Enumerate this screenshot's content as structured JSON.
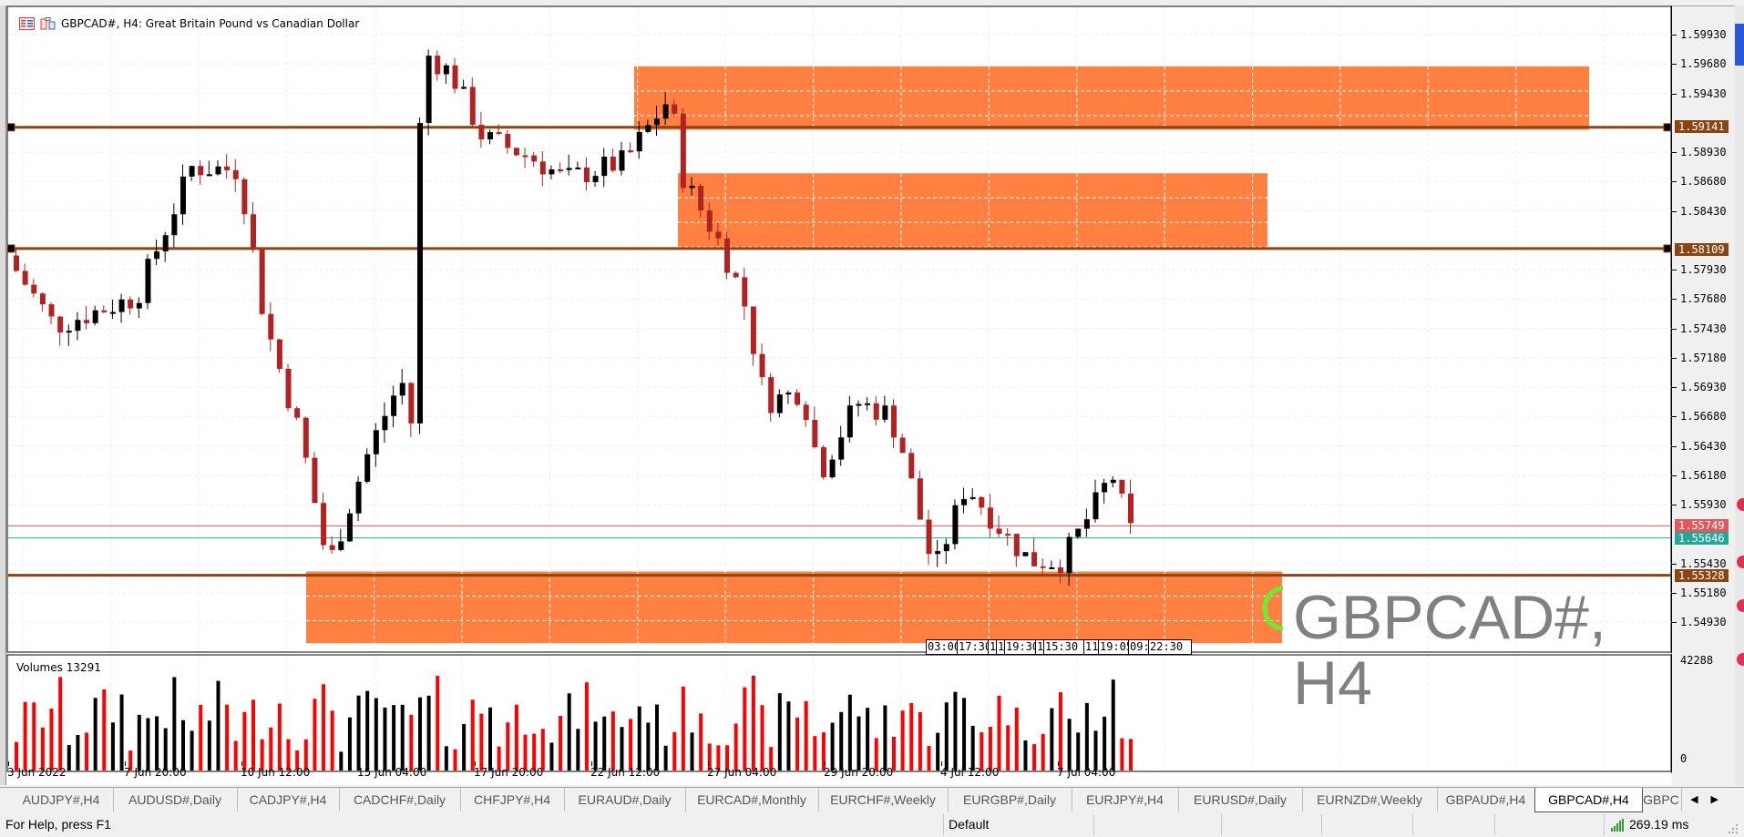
{
  "window": {
    "symbol": "GBPCAD#",
    "timeframe": "H4",
    "title": "GBPCAD#, H4:  Great Britain Pound vs Canadian Dollar",
    "watermark": "GBPCAD#, H4"
  },
  "price_axis": {
    "ticks": [
      "1.59930",
      "1.59680",
      "1.59430",
      "1.58930",
      "1.58680",
      "1.58430",
      "1.57930",
      "1.57680",
      "1.57430",
      "1.57180",
      "1.56930",
      "1.56680",
      "1.56430",
      "1.56180",
      "1.55930",
      "1.55430",
      "1.55180",
      "1.54930"
    ],
    "tags": {
      "level_high": {
        "value": "1.59141",
        "color": "#8b4513"
      },
      "level_mid": {
        "value": "1.58109",
        "color": "#8b4513"
      },
      "ask": {
        "value": "1.55749",
        "color": "#e05a5a"
      },
      "bid": {
        "value": "1.55646",
        "color": "#26a69a"
      },
      "level_low": {
        "value": "1.55328",
        "color": "#8b4513"
      }
    }
  },
  "volume_pane": {
    "label": "Volumes 13291",
    "max_label": "42288",
    "min_label": "0"
  },
  "time_axis": {
    "labels": [
      "3 Jun 2022",
      "7 Jun 20:00",
      "10 Jun 12:00",
      "15 Jun 04:00",
      "17 Jun 20:00",
      "22 Jun 12:00",
      "27 Jun 04:00",
      "29 Jun 20:00",
      "4 Jul 12:00",
      "7 Jul 04:00"
    ]
  },
  "time_boxes": [
    "03:00",
    "17:30",
    "1",
    "1",
    "19:30",
    "1",
    "15:30",
    "11",
    "19:05",
    "09:0",
    "22:30"
  ],
  "tabs": [
    {
      "label": "AUDJPY#,H4",
      "active": false
    },
    {
      "label": "AUDUSD#,Daily",
      "active": false
    },
    {
      "label": "CADJPY#,H4",
      "active": false
    },
    {
      "label": "CADCHF#,Daily",
      "active": false
    },
    {
      "label": "CHFJPY#,H4",
      "active": false
    },
    {
      "label": "EURAUD#,Daily",
      "active": false
    },
    {
      "label": "EURCAD#,Monthly",
      "active": false
    },
    {
      "label": "EURCHF#,Weekly",
      "active": false
    },
    {
      "label": "EURGBP#,Daily",
      "active": false
    },
    {
      "label": "EURJPY#,H4",
      "active": false
    },
    {
      "label": "EURUSD#,Daily",
      "active": false
    },
    {
      "label": "EURNZD#,Weekly",
      "active": false
    },
    {
      "label": "GBPAUD#,H4",
      "active": false
    },
    {
      "label": "GBPCAD#,H4",
      "active": true
    },
    {
      "label": "GBPC",
      "active": false
    }
  ],
  "status_bar": {
    "help": "For Help, press F1",
    "profile": "Default",
    "ping": "269.19 ms"
  },
  "colors": {
    "bull": "#000000",
    "bear": "#b22222",
    "zone": "#ff8040",
    "level": "#8b4513",
    "vol_up": "#000000",
    "vol_down": "#ff0000"
  },
  "chart_data": {
    "type": "candlestick",
    "title": "GBPCAD#, H4",
    "ylim": [
      1.5475,
      1.6015
    ],
    "horizontal_levels": [
      1.59141,
      1.58109,
      1.55328
    ],
    "bid": 1.55646,
    "ask": 1.55749,
    "zones": [
      {
        "from_index": 59,
        "to_index": 148,
        "top": 1.5965,
        "bottom": 1.5914
      },
      {
        "from_index": 63,
        "to_index": 117,
        "top": 1.5875,
        "bottom": 1.5811
      },
      {
        "from_index": 28,
        "to_index": 119,
        "top": 1.5535,
        "bottom": 1.5475
      }
    ],
    "ohlc": [
      [
        1.5805,
        1.5811,
        1.5795,
        1.5803
      ],
      [
        1.5803,
        1.5807,
        1.578,
        1.5785
      ],
      [
        1.5785,
        1.5795,
        1.576,
        1.5765
      ],
      [
        1.5765,
        1.5775,
        1.574,
        1.5745
      ],
      [
        1.5745,
        1.5757,
        1.5722,
        1.5729
      ],
      [
        1.5729,
        1.574,
        1.5722,
        1.5735
      ],
      [
        1.5735,
        1.577,
        1.573,
        1.5768
      ],
      [
        1.5768,
        1.5785,
        1.575,
        1.5752
      ],
      [
        1.5752,
        1.577,
        1.5735,
        1.5761
      ],
      [
        1.5761,
        1.577,
        1.5745,
        1.5755
      ],
      [
        1.5745,
        1.5762,
        1.5732,
        1.576
      ],
      [
        1.5762,
        1.5765,
        1.5738,
        1.5746
      ],
      [
        1.5746,
        1.5774,
        1.5722,
        1.5748
      ],
      [
        1.5748,
        1.5795,
        1.5733,
        1.5775
      ],
      [
        1.5775,
        1.5785,
        1.575,
        1.5753
      ],
      [
        1.5753,
        1.577,
        1.574,
        1.5748
      ],
      [
        1.5748,
        1.5763,
        1.5742,
        1.575
      ],
      [
        1.5752,
        1.576,
        1.5718,
        1.5722
      ],
      [
        1.5724,
        1.5742,
        1.571,
        1.5726
      ],
      [
        1.5726,
        1.575,
        1.5715,
        1.5732
      ],
      [
        1.5732,
        1.576,
        1.5728,
        1.5745
      ],
      [
        1.5745,
        1.5752,
        1.572,
        1.5732
      ],
      [
        1.5732,
        1.5745,
        1.572,
        1.5738
      ],
      [
        1.5738,
        1.576,
        1.5726,
        1.5768
      ],
      [
        1.5768,
        1.583,
        1.5755,
        1.5835
      ],
      [
        1.5835,
        1.5882,
        1.583,
        1.5855
      ],
      [
        1.5855,
        1.5875,
        1.5852,
        1.5877
      ],
      [
        1.5877,
        1.5879,
        1.586,
        1.586
      ],
      [
        1.587,
        1.5882,
        1.584,
        1.588
      ],
      [
        1.588,
        1.5885,
        1.583,
        1.5812
      ],
      [
        1.5812,
        1.58,
        1.5745,
        1.5752
      ],
      [
        1.5752,
        1.577,
        1.574,
        1.577
      ],
      [
        1.577,
        1.5775,
        1.5742,
        1.5751
      ],
      [
        1.5751,
        1.578,
        1.5745,
        1.578
      ],
      [
        1.578,
        1.5785,
        1.5728,
        1.5732
      ],
      [
        1.5732,
        1.5738,
        1.568,
        1.5698
      ],
      [
        1.5698,
        1.572,
        1.565,
        1.5702
      ],
      [
        1.5702,
        1.5715,
        1.567,
        1.569
      ],
      [
        1.569,
        1.573,
        1.5685,
        1.5722
      ],
      [
        1.5722,
        1.5755,
        1.5705,
        1.573
      ],
      [
        1.573,
        1.574,
        1.565,
        1.566
      ],
      [
        1.566,
        1.5665,
        1.5587,
        1.5605
      ],
      [
        1.5605,
        1.561,
        1.5572,
        1.5585
      ],
      [
        1.5585,
        1.5625,
        1.558,
        1.562
      ],
      [
        1.562,
        1.563,
        1.56,
        1.5624
      ],
      [
        1.5624,
        1.568,
        1.56,
        1.567
      ],
      [
        1.567,
        1.5705,
        1.5665,
        1.569
      ],
      [
        1.569,
        1.57,
        1.5665,
        1.5678
      ],
      [
        1.5678,
        1.5682,
        1.561,
        1.5612
      ],
      [
        1.5612,
        1.577,
        1.561,
        1.5765
      ],
      [
        1.5765,
        1.5925,
        1.5762,
        1.5972
      ],
      [
        1.5972,
        1.5985,
        1.593,
        1.5978
      ],
      [
        1.598,
        1.6005,
        1.5968,
        1.5975
      ],
      [
        1.5975,
        1.5988,
        1.591,
        1.594
      ],
      [
        1.594,
        1.5995,
        1.5905,
        1.5968
      ],
      [
        1.5968,
        1.5982,
        1.5945,
        1.596
      ],
      [
        1.596,
        1.5965,
        1.5885,
        1.5898
      ],
      [
        1.5898,
        1.5915,
        1.5885,
        1.59
      ],
      [
        1.59,
        1.5912,
        1.587,
        1.589
      ],
      [
        1.589,
        1.5923,
        1.5865,
        1.5913
      ],
      [
        1.5913,
        1.5945,
        1.5905,
        1.592
      ],
      [
        1.592,
        1.595,
        1.589,
        1.5925
      ],
      [
        1.5925,
        1.594,
        1.588,
        1.5905
      ],
      [
        1.5905,
        1.5925,
        1.587,
        1.5915
      ],
      [
        1.5915,
        1.5925,
        1.5875,
        1.5897
      ]
    ],
    "volume_max": 42288
  }
}
